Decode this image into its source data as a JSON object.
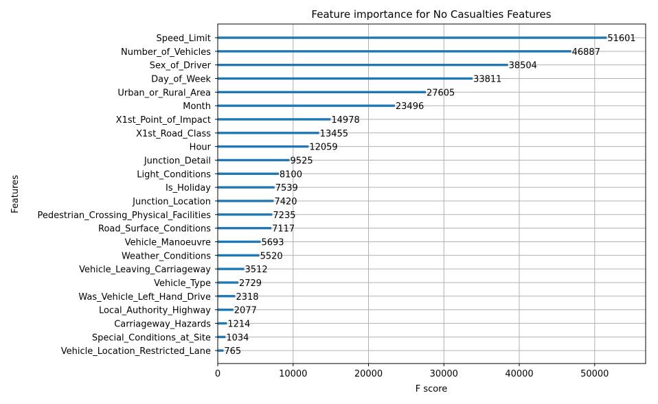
{
  "chart_data": {
    "type": "bar",
    "orientation": "horizontal",
    "title": "Feature importance for No Casualties Features",
    "xlabel": "F score",
    "ylabel": "Features",
    "xlim": [
      0,
      56762
    ],
    "xticks": [
      0,
      10000,
      20000,
      30000,
      40000,
      50000
    ],
    "xtick_labels": [
      "0",
      "10000",
      "20000",
      "30000",
      "40000",
      "50000"
    ],
    "grid": true,
    "bar_color": "#1f77b4",
    "categories": [
      "Speed_Limit",
      "Number_of_Vehicles",
      "Sex_of_Driver",
      "Day_of_Week",
      "Urban_or_Rural_Area",
      "Month",
      "X1st_Point_of_Impact",
      "X1st_Road_Class",
      "Hour",
      "Junction_Detail",
      "Light_Conditions",
      "Is_Holiday",
      "Junction_Location",
      "Pedestrian_Crossing_Physical_Facilities",
      "Road_Surface_Conditions",
      "Vehicle_Manoeuvre",
      "Weather_Conditions",
      "Vehicle_Leaving_Carriageway",
      "Vehicle_Type",
      "Was_Vehicle_Left_Hand_Drive",
      "Local_Authority_Highway",
      "Carriageway_Hazards",
      "Special_Conditions_at_Site",
      "Vehicle_Location_Restricted_Lane"
    ],
    "values": [
      51601,
      46887,
      38504,
      33811,
      27605,
      23496,
      14978,
      13455,
      12059,
      9525,
      8100,
      7539,
      7420,
      7235,
      7117,
      5693,
      5520,
      3512,
      2729,
      2318,
      2077,
      1214,
      1034,
      765
    ]
  }
}
